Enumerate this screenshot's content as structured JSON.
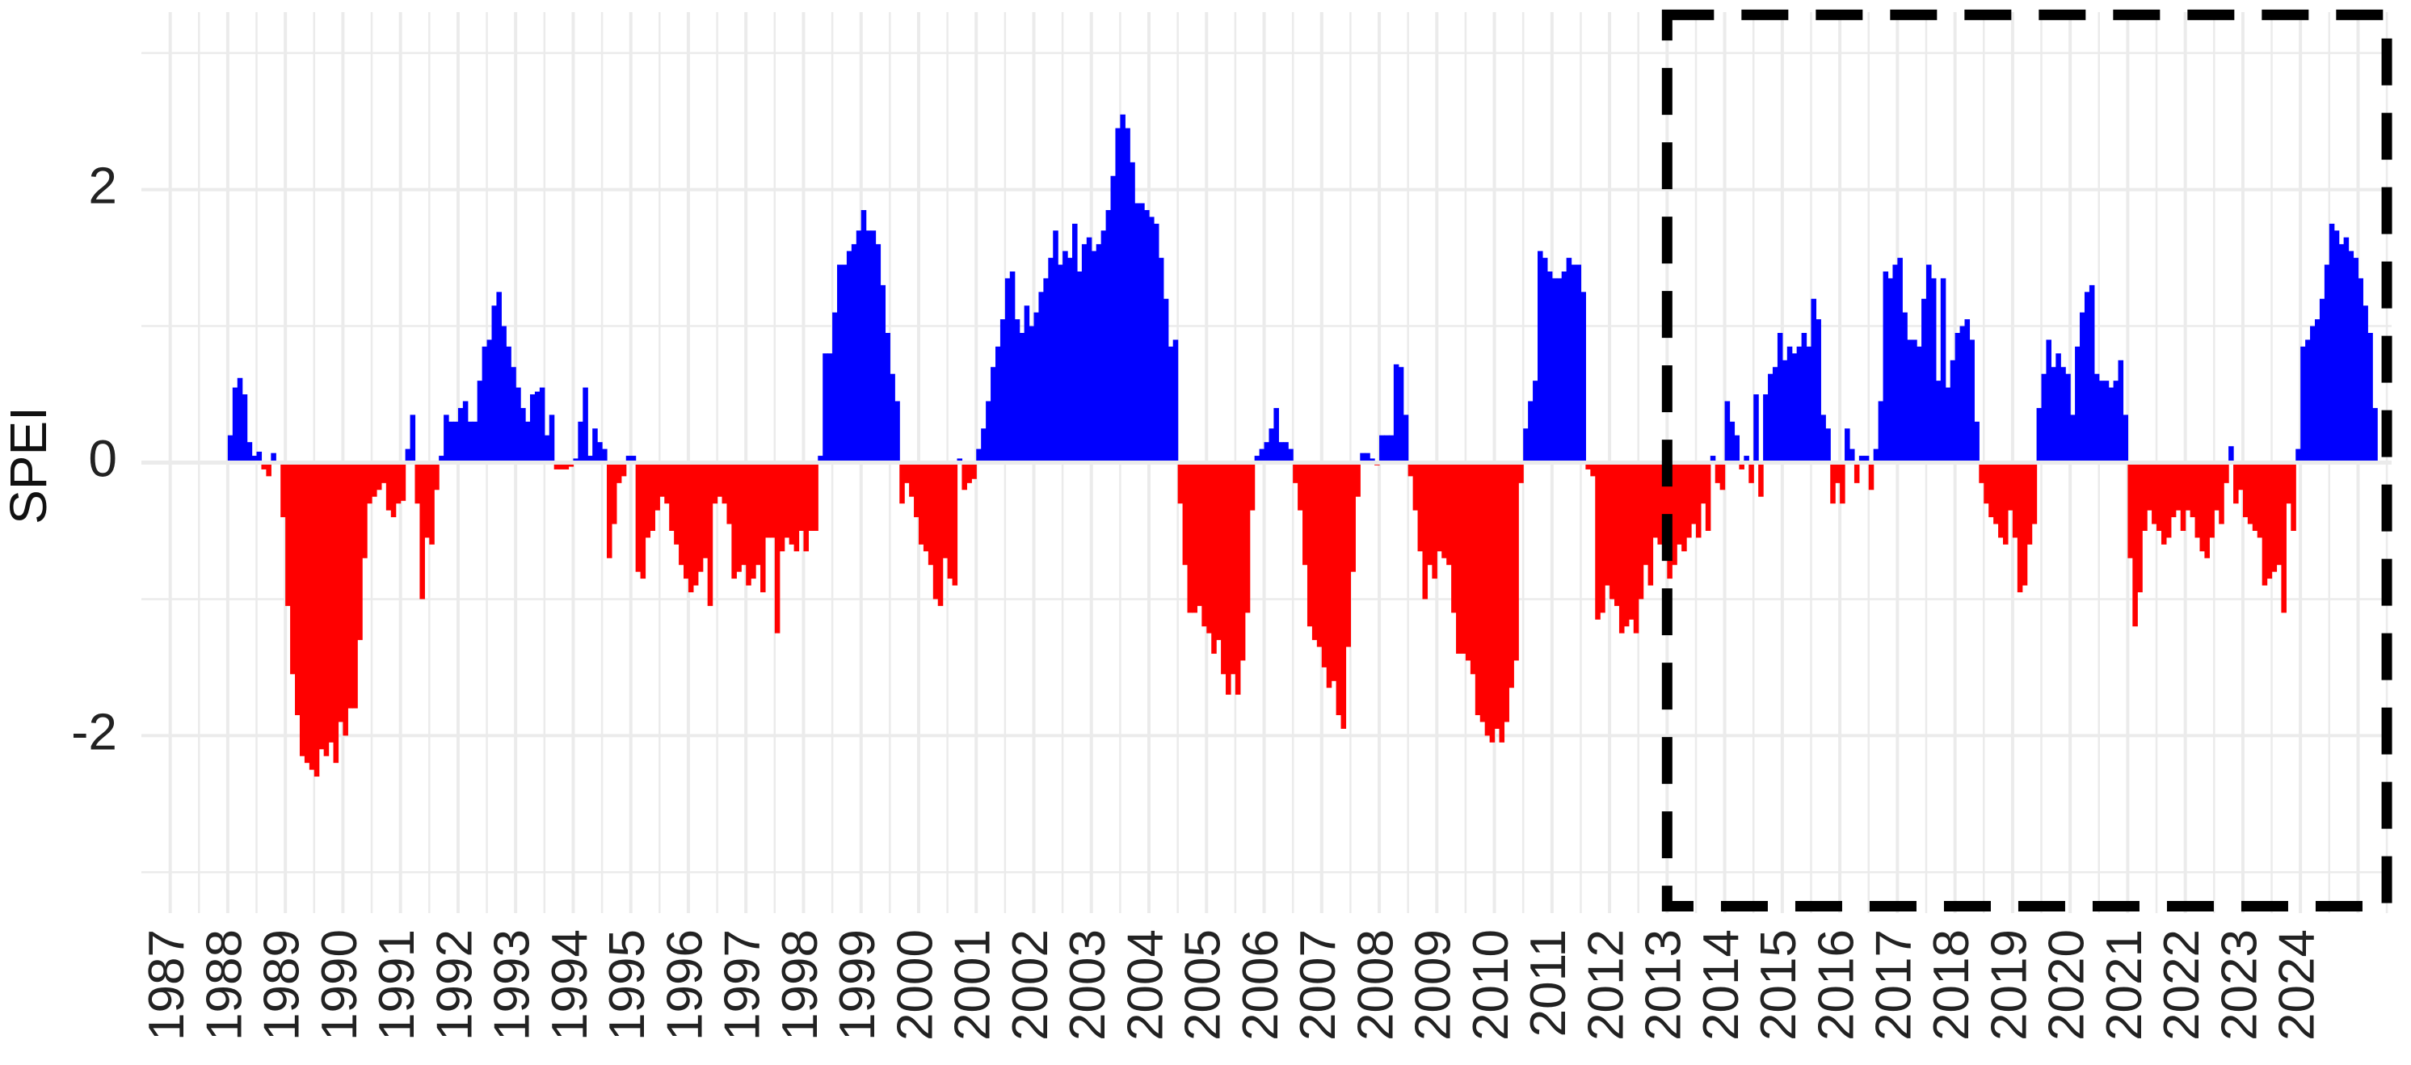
{
  "colors": {
    "positive": "#0000FF",
    "negative": "#FF0000",
    "grid": "#EBEBEB",
    "highlight_box": "#000000",
    "background": "#FFFFFF"
  },
  "chart_data": {
    "type": "bar",
    "title": "",
    "xlabel": "",
    "ylabel": "SPEI",
    "ylim": [
      -3.3,
      3.3
    ],
    "xlim": [
      "1986-07",
      "2025-08"
    ],
    "y_ticks": [
      "2",
      "0",
      "-2"
    ],
    "x_ticks": [
      "1987",
      "1988",
      "1989",
      "1990",
      "1991",
      "1992",
      "1993",
      "1994",
      "1995",
      "1996",
      "1997",
      "1998",
      "1999",
      "2000",
      "2001",
      "2002",
      "2003",
      "2004",
      "2005",
      "2006",
      "2007",
      "2008",
      "2009",
      "2010",
      "2011",
      "2012",
      "2013",
      "2014",
      "2015",
      "2016",
      "2017",
      "2018",
      "2019",
      "2020",
      "2021",
      "2022",
      "2023",
      "2024"
    ],
    "x_tick_label_rotation": "vertical",
    "grid": true,
    "legend": "none",
    "positive_color": "blue",
    "negative_color": "red",
    "start_month": "1988-01",
    "series": [
      {
        "values": [
          0.2,
          0.55,
          0.62,
          0.5,
          0.15,
          0.05,
          0.08,
          -0.05,
          -0.1,
          0.07,
          0.0,
          -0.4,
          -1.05,
          -1.55,
          -1.85,
          -2.15,
          -2.2,
          -2.25,
          -2.3,
          -2.1,
          -2.15,
          -2.05,
          -2.2,
          -1.9,
          -2.0,
          -1.8,
          -1.8,
          -1.3,
          -0.7,
          -0.3,
          -0.25,
          -0.2,
          -0.15,
          -0.35,
          -0.4,
          -0.3,
          -0.28,
          0.1,
          0.35,
          -0.3,
          -1.0,
          -0.55,
          -0.6,
          -0.2,
          0.05,
          0.35,
          0.3,
          0.3,
          0.4,
          0.45,
          0.3,
          0.3,
          0.6,
          0.85,
          0.9,
          1.15,
          1.25,
          1.0,
          0.85,
          0.7,
          0.55,
          0.4,
          0.3,
          0.5,
          0.52,
          0.55,
          0.2,
          0.35,
          -0.05,
          -0.05,
          -0.05,
          -0.03,
          0.03,
          0.3,
          0.55,
          0.05,
          0.25,
          0.15,
          0.1,
          -0.7,
          -0.45,
          -0.15,
          -0.1,
          0.05,
          0.05,
          -0.8,
          -0.85,
          -0.55,
          -0.5,
          -0.35,
          -0.25,
          -0.3,
          -0.5,
          -0.6,
          -0.75,
          -0.85,
          -0.95,
          -0.9,
          -0.8,
          -0.7,
          -1.05,
          -0.3,
          -0.25,
          -0.3,
          -0.45,
          -0.85,
          -0.8,
          -0.75,
          -0.9,
          -0.85,
          -0.75,
          -0.95,
          -0.55,
          -0.55,
          -1.25,
          -0.65,
          -0.55,
          -0.6,
          -0.65,
          -0.5,
          -0.65,
          -0.5,
          -0.5,
          0.05,
          0.8,
          0.8,
          1.1,
          1.45,
          1.45,
          1.55,
          1.6,
          1.7,
          1.85,
          1.7,
          1.7,
          1.6,
          1.3,
          0.95,
          0.65,
          0.45,
          -0.3,
          -0.15,
          -0.25,
          -0.4,
          -0.6,
          -0.65,
          -0.75,
          -1.0,
          -1.05,
          -0.7,
          -0.85,
          -0.9,
          0.03,
          -0.2,
          -0.15,
          -0.12,
          0.1,
          0.25,
          0.45,
          0.7,
          0.85,
          1.05,
          1.35,
          1.4,
          1.05,
          0.95,
          1.15,
          1.0,
          1.1,
          1.25,
          1.35,
          1.5,
          1.7,
          1.45,
          1.55,
          1.5,
          1.75,
          1.4,
          1.6,
          1.65,
          1.55,
          1.6,
          1.7,
          1.85,
          2.1,
          2.45,
          2.55,
          2.45,
          2.2,
          1.9,
          1.9,
          1.85,
          1.8,
          1.75,
          1.5,
          1.2,
          0.85,
          0.9,
          -0.3,
          -0.75,
          -1.1,
          -1.1,
          -1.05,
          -1.2,
          -1.25,
          -1.4,
          -1.3,
          -1.55,
          -1.7,
          -1.55,
          -1.7,
          -1.45,
          -1.1,
          -0.35,
          0.05,
          0.1,
          0.15,
          0.25,
          0.4,
          0.15,
          0.15,
          0.1,
          -0.15,
          -0.35,
          -0.75,
          -1.2,
          -1.3,
          -1.35,
          -1.5,
          -1.65,
          -1.6,
          -1.85,
          -1.95,
          -1.35,
          -0.8,
          -0.25,
          0.07,
          0.07,
          0.03,
          -0.02,
          0.2,
          0.2,
          0.2,
          0.72,
          0.7,
          0.35,
          -0.1,
          -0.35,
          -0.65,
          -1.0,
          -0.75,
          -0.85,
          -0.65,
          -0.7,
          -0.75,
          -1.1,
          -1.4,
          -1.4,
          -1.45,
          -1.55,
          -1.85,
          -1.9,
          -2.0,
          -2.05,
          -1.95,
          -2.05,
          -1.9,
          -1.65,
          -1.45,
          -0.15,
          0.25,
          0.45,
          0.6,
          1.55,
          1.5,
          1.4,
          1.35,
          1.35,
          1.4,
          1.5,
          1.45,
          1.45,
          1.25,
          -0.05,
          -0.1,
          -1.15,
          -1.1,
          -0.9,
          -1.0,
          -1.05,
          -1.25,
          -1.2,
          -1.15,
          -1.25,
          -1.0,
          -0.75,
          -0.9,
          -0.55,
          -0.6,
          -0.6,
          -0.85,
          -0.75,
          -0.6,
          -0.65,
          -0.55,
          -0.45,
          -0.55,
          -0.3,
          -0.5,
          0.05,
          -0.15,
          -0.2,
          0.45,
          0.3,
          0.2,
          -0.05,
          0.05,
          -0.15,
          0.5,
          -0.25,
          0.5,
          0.65,
          0.7,
          0.95,
          0.75,
          0.85,
          0.8,
          0.85,
          0.95,
          0.85,
          1.2,
          1.05,
          0.35,
          0.25,
          -0.3,
          -0.15,
          -0.3,
          0.25,
          0.1,
          -0.15,
          0.05,
          0.05,
          -0.2,
          0.1,
          0.45,
          1.4,
          1.35,
          1.45,
          1.5,
          1.1,
          0.9,
          0.9,
          0.85,
          1.2,
          1.45,
          1.35,
          0.6,
          1.35,
          0.55,
          0.75,
          0.95,
          1.0,
          1.05,
          0.9,
          0.3,
          -0.15,
          -0.3,
          -0.4,
          -0.45,
          -0.55,
          -0.6,
          -0.35,
          -0.55,
          -0.95,
          -0.9,
          -0.6,
          -0.45,
          0.4,
          0.65,
          0.9,
          0.7,
          0.8,
          0.7,
          0.65,
          0.35,
          0.85,
          1.1,
          1.25,
          1.3,
          0.65,
          0.6,
          0.6,
          0.55,
          0.6,
          0.75,
          0.35,
          -0.7,
          -1.2,
          -0.95,
          -0.5,
          -0.35,
          -0.45,
          -0.5,
          -0.6,
          -0.55,
          -0.4,
          -0.35,
          -0.5,
          -0.35,
          -0.4,
          -0.55,
          -0.65,
          -0.7,
          -0.55,
          -0.35,
          -0.45,
          -0.15,
          0.12,
          -0.3,
          -0.2,
          -0.4,
          -0.45,
          -0.5,
          -0.55,
          -0.9,
          -0.85,
          -0.8,
          -0.75,
          -1.1,
          -0.3,
          -0.5,
          0.1,
          0.85,
          0.9,
          1.0,
          1.05,
          1.2,
          1.45,
          1.75,
          1.7,
          1.6,
          1.65,
          1.55,
          1.5,
          1.35,
          1.15,
          0.95,
          0.4
        ]
      }
    ],
    "highlight_box": {
      "style": "dashed",
      "from": "2013-01",
      "to": "2025-07",
      "y_range": [
        -3.25,
        3.28
      ]
    }
  }
}
